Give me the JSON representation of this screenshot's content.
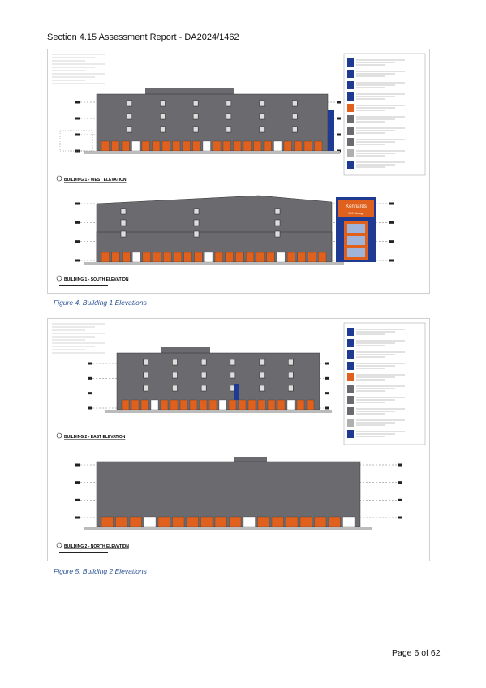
{
  "header": {
    "title": "Section 4.15 Assessment Report - DA2024/1462"
  },
  "figures": [
    {
      "caption": "Figure 4: Building 1 Elevations",
      "drawings": [
        {
          "label": "BUILDING 1 - WEST ELEVATION"
        },
        {
          "label": "BUILDING 1 - SOUTH ELEVATION",
          "sign": [
            "Kennards",
            "Self Storage"
          ]
        }
      ]
    },
    {
      "caption": "Figure 5: Building 2 Elevations",
      "drawings": [
        {
          "label": "BUILDING 2 - EAST ELEVATION"
        },
        {
          "label": "BUILDING 2 - NORTH ELEVATION"
        }
      ]
    }
  ],
  "footer": {
    "page": "Page 6 of 62"
  }
}
